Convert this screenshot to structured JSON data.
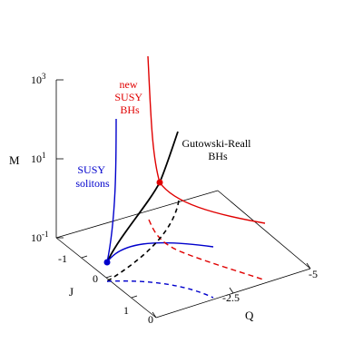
{
  "chart_data": {
    "type": "line",
    "projection": "3d",
    "title": "",
    "axes": {
      "z": {
        "label": "M",
        "scale": "log",
        "ticks": [
          {
            "base": "10",
            "exp": "-1"
          },
          {
            "base": "10",
            "exp": "1"
          },
          {
            "base": "10",
            "exp": "3"
          }
        ]
      },
      "y": {
        "label": "J",
        "ticks": [
          "-1",
          "0",
          "1"
        ]
      },
      "x": {
        "label": "Q",
        "ticks": [
          "0",
          "-2.5",
          "-5"
        ]
      }
    },
    "series": [
      {
        "name": "new SUSY BHs",
        "label_lines": [
          "new",
          "SUSY",
          "BHs"
        ],
        "color": "#e00000",
        "style": "solid"
      },
      {
        "name": "Gutowski-Reall BHs",
        "label_lines": [
          "Gutowski-Reall",
          "BHs"
        ],
        "color": "#000000",
        "style": "solid"
      },
      {
        "name": "SUSY solitons",
        "label_lines": [
          "SUSY",
          "solitons"
        ],
        "color": "#0000cc",
        "style": "solid"
      }
    ],
    "projections": [
      {
        "of": "new SUSY BHs",
        "color": "#e00000",
        "style": "dashed"
      },
      {
        "of": "Gutowski-Reall BHs",
        "color": "#000000",
        "style": "dashed"
      },
      {
        "of": "SUSY solitons",
        "color": "#0000cc",
        "style": "dashed"
      }
    ],
    "markers": [
      {
        "at": "junction of new SUSY BHs and Gutowski-Reall BHs",
        "color": "#e00000"
      },
      {
        "at": "start of SUSY solitons and Gutowski-Reall BHs",
        "color": "#0000cc"
      }
    ],
    "grid": false
  }
}
